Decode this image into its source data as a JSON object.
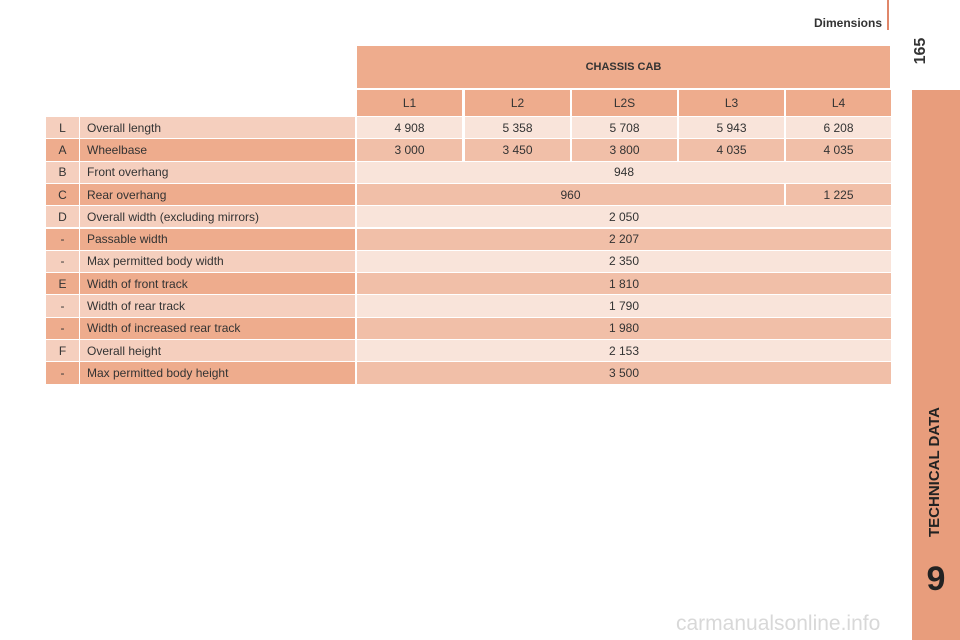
{
  "header": {
    "section": "Dimensions",
    "page_number": "165"
  },
  "sidebar": {
    "chapter_title": "TECHNICAL DATA",
    "chapter_number": "9"
  },
  "table": {
    "group_header": "CHASSIS CAB",
    "columns": [
      "L1",
      "L2",
      "L2S",
      "L3",
      "L4"
    ],
    "rows": [
      {
        "code": "L",
        "label": "Overall length",
        "cells": [
          "4 908",
          "5 358",
          "5 708",
          "5 943",
          "6 208"
        ]
      },
      {
        "code": "A",
        "label": "Wheelbase",
        "cells": [
          "3 000",
          "3 450",
          "3 800",
          "4 035",
          "4 035"
        ]
      },
      {
        "code": "B",
        "label": "Front overhang",
        "cells": [
          "948"
        ]
      },
      {
        "code": "C",
        "label": "Rear overhang",
        "cells": [
          "960",
          "1 225"
        ]
      },
      {
        "code": "D",
        "label": "Overall width (excluding mirrors)",
        "cells": [
          "2 050"
        ]
      },
      {
        "code": "-",
        "label": "Passable width",
        "cells": [
          "2 207"
        ]
      },
      {
        "code": "-",
        "label": "Max permitted body width",
        "cells": [
          "2 350"
        ]
      },
      {
        "code": "E",
        "label": "Width of front track",
        "cells": [
          "1 810"
        ]
      },
      {
        "code": "-",
        "label": "Width of rear track",
        "cells": [
          "1 790"
        ]
      },
      {
        "code": "-",
        "label": "Width of increased rear track",
        "cells": [
          "1 980"
        ]
      },
      {
        "code": "F",
        "label": "Overall height",
        "cells": [
          "2 153"
        ]
      },
      {
        "code": "-",
        "label": "Max permitted body height",
        "cells": [
          "3 500"
        ]
      }
    ]
  },
  "watermark": "carmanualsonline.info"
}
